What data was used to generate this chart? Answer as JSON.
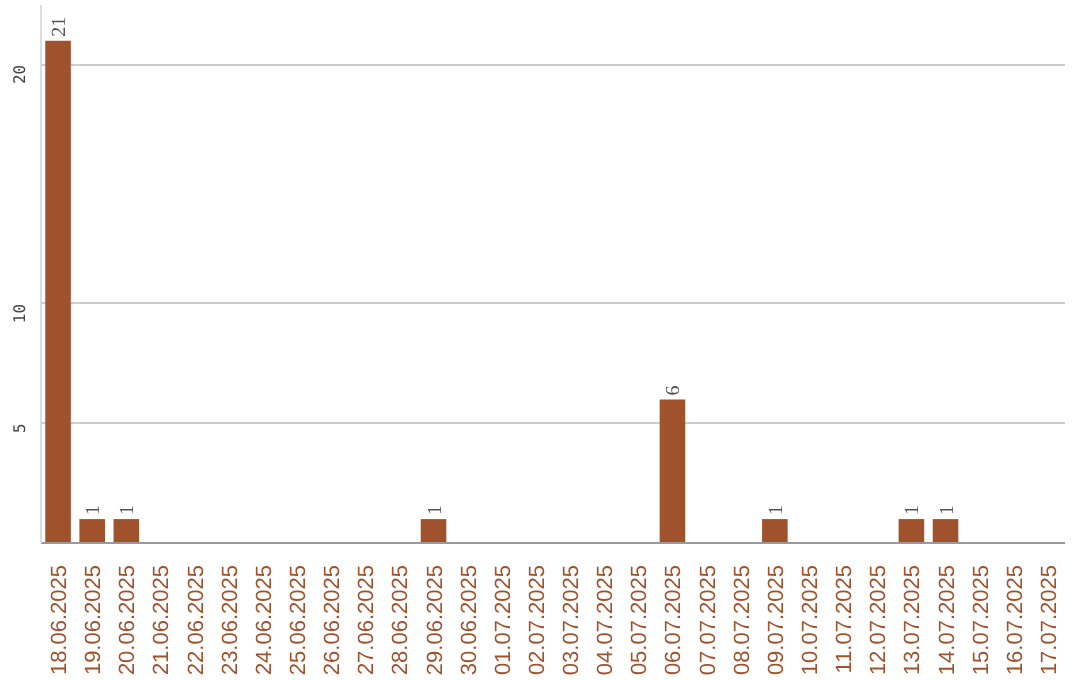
{
  "chart_data": {
    "type": "bar",
    "categories": [
      "18.06.2025",
      "19.06.2025",
      "20.06.2025",
      "21.06.2025",
      "22.06.2025",
      "23.06.2025",
      "24.06.2025",
      "25.06.2025",
      "26.06.2025",
      "27.06.2025",
      "28.06.2025",
      "29.06.2025",
      "30.06.2025",
      "01.07.2025",
      "02.07.2025",
      "03.07.2025",
      "04.07.2025",
      "05.07.2025",
      "06.07.2025",
      "07.07.2025",
      "08.07.2025",
      "09.07.2025",
      "10.07.2025",
      "11.07.2025",
      "12.07.2025",
      "13.07.2025",
      "14.07.2025",
      "15.07.2025",
      "16.07.2025",
      "17.07.2025"
    ],
    "values": [
      21,
      1,
      1,
      0,
      0,
      0,
      0,
      0,
      0,
      0,
      0,
      1,
      0,
      0,
      0,
      0,
      0,
      0,
      6,
      0,
      0,
      1,
      0,
      0,
      0,
      1,
      1,
      0,
      0,
      0
    ],
    "color": "#a0522d",
    "value_labels": [
      "21",
      "1",
      "1",
      null,
      null,
      null,
      null,
      null,
      null,
      null,
      null,
      "1",
      null,
      null,
      null,
      null,
      null,
      null,
      "6",
      null,
      null,
      "1",
      null,
      null,
      null,
      "1",
      "1",
      null,
      null,
      null
    ],
    "ylim": [
      0,
      22.5
    ],
    "yticks": [
      5,
      10,
      20
    ],
    "grid": "y"
  }
}
